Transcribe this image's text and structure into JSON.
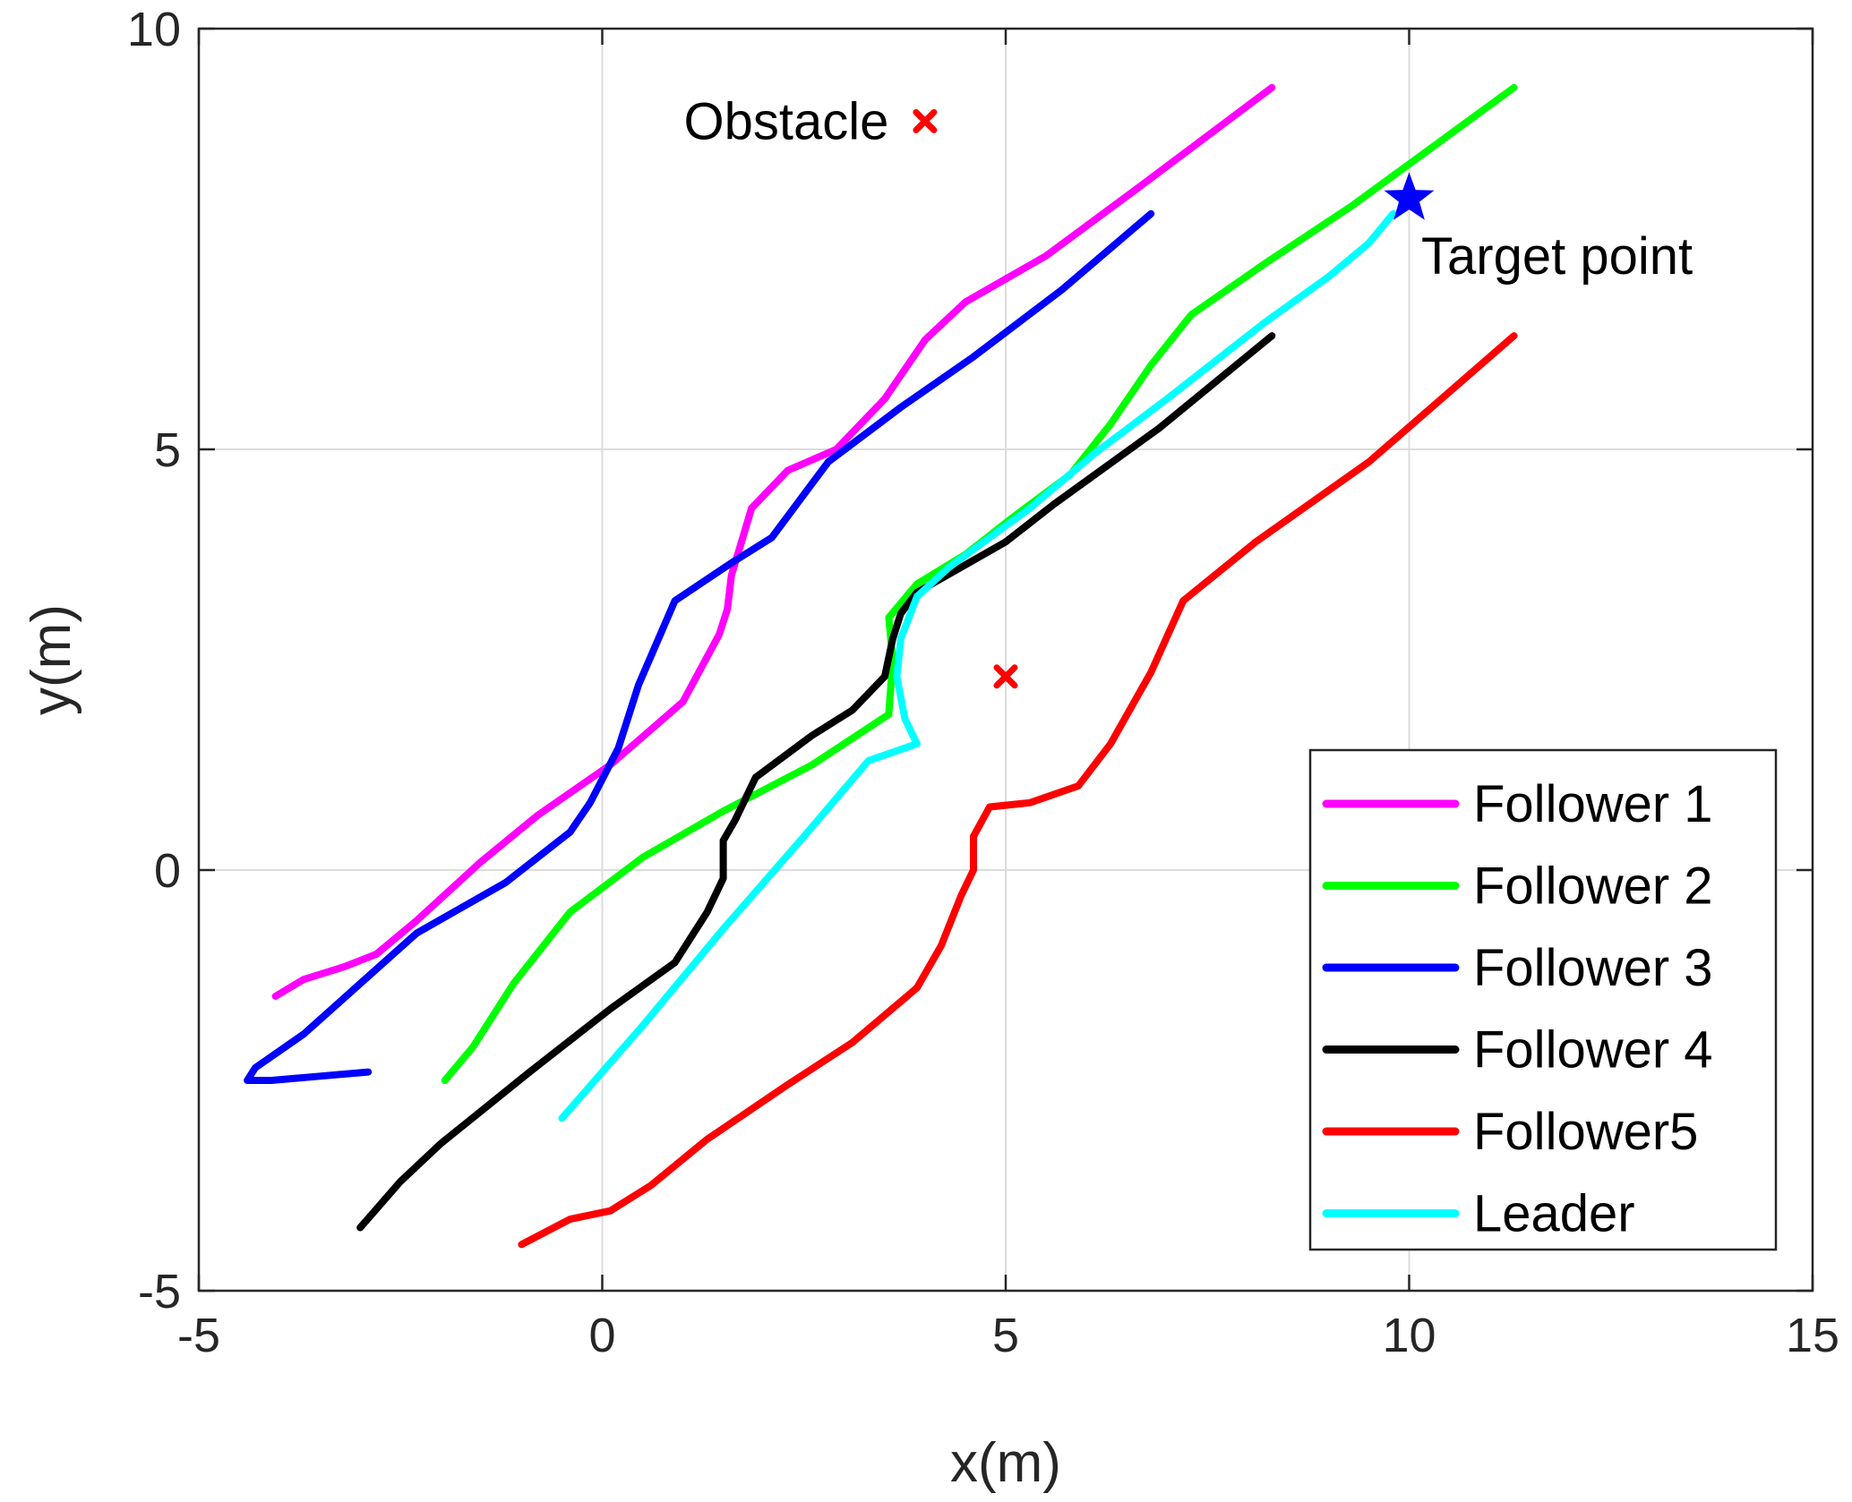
{
  "chart_data": {
    "type": "line",
    "title": "",
    "xlabel": "x(m)",
    "ylabel": "y(m)",
    "xlim": [
      -5,
      15
    ],
    "ylim": [
      -5,
      10
    ],
    "xticks": [
      -5,
      0,
      5,
      10,
      15
    ],
    "yticks": [
      -5,
      0,
      5,
      10
    ],
    "xtick_labels": [
      "-5",
      "0",
      "5",
      "10",
      "15"
    ],
    "ytick_labels": [
      "-5",
      "0",
      "5",
      "10"
    ],
    "grid": true,
    "legend_position": "bottom-right",
    "series": [
      {
        "name": "Follower 1",
        "color": "#ff00ff",
        "x": [
          -4.05,
          -3.7,
          -3.2,
          -2.8,
          -2.3,
          -1.5,
          -0.8,
          0.1,
          1.0,
          1.45,
          1.55,
          1.6,
          1.85,
          2.3,
          2.9,
          3.5,
          4.0,
          4.5,
          5.5,
          6.7,
          8.3
        ],
        "y": [
          -1.5,
          -1.3,
          -1.15,
          -1.0,
          -0.6,
          0.1,
          0.65,
          1.25,
          2.0,
          2.8,
          3.1,
          3.5,
          4.3,
          4.75,
          5.0,
          5.6,
          6.3,
          6.75,
          7.3,
          8.15,
          9.3
        ]
      },
      {
        "name": "Follower 2",
        "color": "#00ff00",
        "x": [
          -1.95,
          -1.6,
          -1.1,
          -0.4,
          0.5,
          1.5,
          2.6,
          3.55,
          3.6,
          3.55,
          3.9,
          4.5,
          5.1,
          5.8,
          6.3,
          6.8,
          7.3,
          8.2,
          9.3,
          10.3,
          11.3
        ],
        "y": [
          -2.5,
          -2.1,
          -1.35,
          -0.5,
          0.15,
          0.7,
          1.25,
          1.85,
          2.5,
          3.0,
          3.4,
          3.75,
          4.2,
          4.7,
          5.3,
          6.0,
          6.6,
          7.2,
          7.9,
          8.6,
          9.3
        ]
      },
      {
        "name": "Follower 3",
        "color": "#0000ff",
        "x": [
          -2.9,
          -3.5,
          -4.1,
          -4.4,
          -4.3,
          -3.7,
          -3.0,
          -2.3,
          -1.2,
          -0.4,
          -0.15,
          0.2,
          0.45,
          0.9,
          1.6,
          2.1,
          2.8,
          3.7,
          4.6,
          5.7,
          6.8
        ],
        "y": [
          -2.4,
          -2.45,
          -2.5,
          -2.5,
          -2.35,
          -1.95,
          -1.35,
          -0.75,
          -0.15,
          0.45,
          0.8,
          1.45,
          2.2,
          3.2,
          3.65,
          3.95,
          4.85,
          5.5,
          6.1,
          6.9,
          7.8
        ]
      },
      {
        "name": "Follower 4",
        "color": "#000000",
        "x": [
          -3.0,
          -2.5,
          -2.0,
          -0.9,
          0.1,
          0.9,
          1.3,
          1.5,
          1.5,
          1.65,
          1.9,
          2.6,
          3.1,
          3.5,
          3.6,
          3.7,
          3.9,
          5.0,
          5.6,
          6.9,
          8.3
        ],
        "y": [
          -4.25,
          -3.7,
          -3.25,
          -2.4,
          -1.65,
          -1.1,
          -0.5,
          -0.1,
          0.35,
          0.6,
          1.1,
          1.6,
          1.9,
          2.3,
          2.75,
          3.05,
          3.3,
          3.9,
          4.35,
          5.25,
          6.35
        ]
      },
      {
        "name": "Follower5",
        "color": "#ff0000",
        "x": [
          -1.0,
          -0.4,
          0.1,
          0.6,
          1.3,
          2.3,
          3.1,
          3.9,
          4.2,
          4.45,
          4.6,
          4.6,
          4.8,
          5.3,
          5.9,
          6.3,
          6.8,
          7.2,
          8.1,
          9.5,
          11.3
        ],
        "y": [
          -4.45,
          -4.15,
          -4.05,
          -3.75,
          -3.2,
          -2.55,
          -2.05,
          -1.4,
          -0.9,
          -0.3,
          0.0,
          0.4,
          0.75,
          0.8,
          1.0,
          1.5,
          2.35,
          3.2,
          3.9,
          4.85,
          6.35
        ]
      },
      {
        "name": "Leader",
        "color": "#00ffff",
        "x": [
          -0.5,
          0.5,
          1.5,
          2.5,
          3.3,
          3.9,
          3.75,
          3.65,
          3.7,
          3.9,
          4.3,
          4.8,
          5.3,
          6.1,
          7.0,
          8.2,
          9.0,
          9.5,
          9.8
        ],
        "y": [
          -2.95,
          -1.85,
          -0.7,
          0.4,
          1.3,
          1.5,
          1.8,
          2.3,
          2.75,
          3.25,
          3.6,
          3.95,
          4.3,
          4.95,
          5.6,
          6.5,
          7.05,
          7.45,
          7.8
        ]
      }
    ],
    "markers": [
      {
        "name": "obstacle-marker-top",
        "symbol": "x",
        "color": "#ff0000",
        "x": 4.0,
        "y": 8.9
      },
      {
        "name": "obstacle-marker-center",
        "symbol": "x",
        "color": "#ff0000",
        "x": 5.0,
        "y": 2.3
      },
      {
        "name": "target-point-marker",
        "symbol": "star",
        "color": "#0000ff",
        "x": 10.0,
        "y": 7.98
      }
    ],
    "annotations": [
      {
        "name": "obstacle-label",
        "text": "Obstacle",
        "x": 3.55,
        "y": 8.9,
        "anchor": "end"
      },
      {
        "name": "target-point-label",
        "text": "Target point",
        "x": 10.15,
        "y": 7.3,
        "anchor": "start"
      }
    ],
    "legend": [
      "Follower 1",
      "Follower 2",
      "Follower 3",
      "Follower 4",
      "Follower5",
      "Leader"
    ]
  }
}
